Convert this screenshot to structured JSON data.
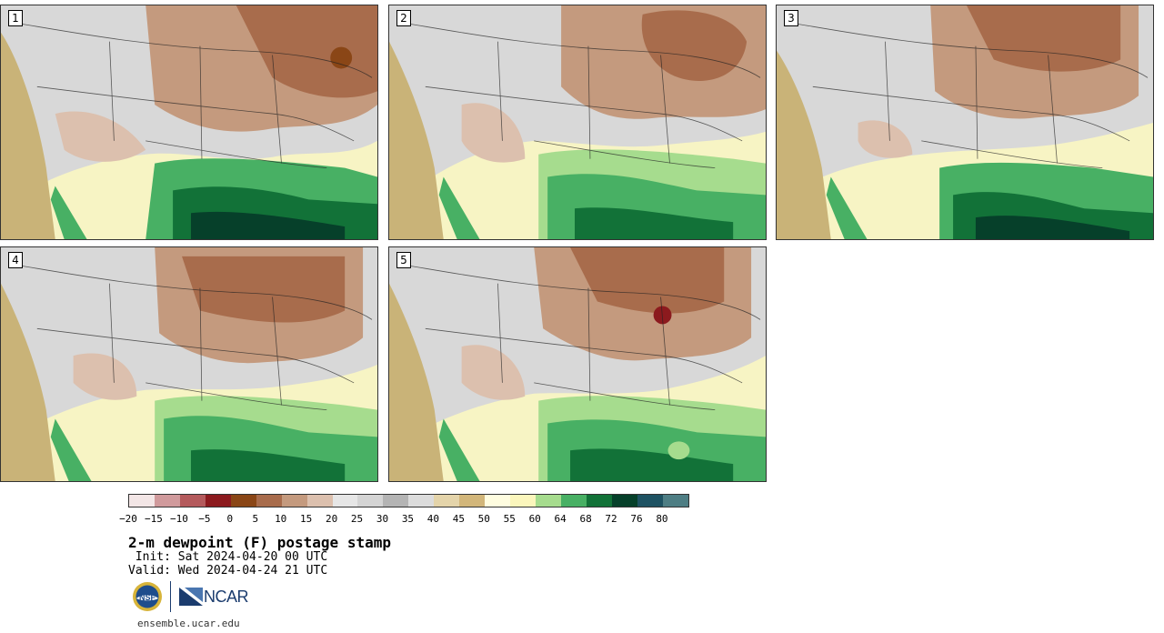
{
  "panels": [
    {
      "number": "1"
    },
    {
      "number": "2"
    },
    {
      "number": "3"
    },
    {
      "number": "4"
    },
    {
      "number": "5"
    }
  ],
  "colorbar": {
    "colors": [
      "#f3e6e6",
      "#d09a9c",
      "#b45a5c",
      "#8c1a1e",
      "#8a4616",
      "#a86c4c",
      "#c49a7e",
      "#dcc0ae",
      "#e6e6e6",
      "#d4d4d4",
      "#b4b4b4",
      "#dcdcdc",
      "#e4d4aa",
      "#d2b67a",
      "#fffde0",
      "#fbf6bc",
      "#a6dc8e",
      "#48b064",
      "#127238",
      "#06402a",
      "#1e5262",
      "#4e7e84"
    ],
    "tick_labels": [
      "−20",
      "−15",
      "−10",
      "−5",
      "0",
      "5",
      "10",
      "15",
      "20",
      "25",
      "30",
      "35",
      "40",
      "45",
      "50",
      "55",
      "60",
      "64",
      "68",
      "72",
      "76",
      "80"
    ]
  },
  "title": "2-m dewpoint (F) postage stamp",
  "init": " Init: Sat 2024-04-20 00 UTC",
  "valid": "Valid: Wed 2024-04-24 21 UTC",
  "logos": {
    "nsf": "NSF",
    "ncar": "NCAR"
  },
  "footer": "ensemble.ucar.edu"
}
